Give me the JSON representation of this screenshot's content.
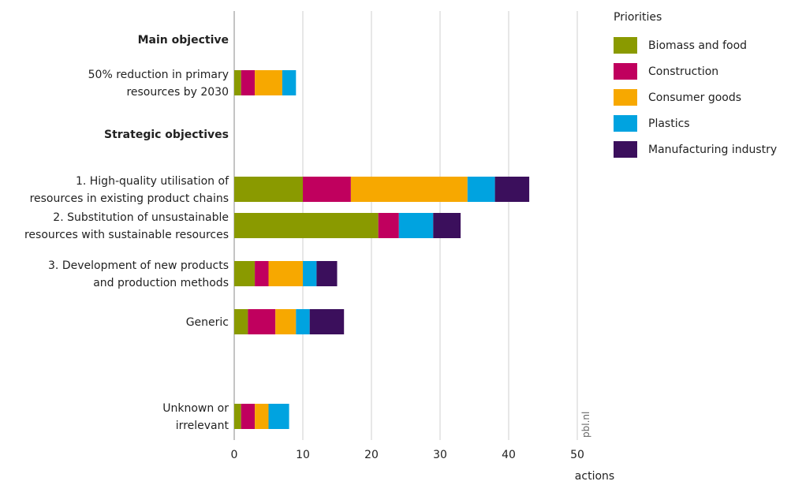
{
  "chart_data": {
    "type": "bar",
    "orientation": "horizontal",
    "stacked": true,
    "headings": [
      "Main objective",
      "Strategic objectives"
    ],
    "categories": [
      [
        "50% reduction in primary",
        "resources by 2030"
      ],
      [
        "1. High-quality utilisation of",
        "resources in existing product chains"
      ],
      [
        "2. Substitution of unsustainable",
        "resources with sustainable resources"
      ],
      [
        "3. Development of new products",
        "and production methods"
      ],
      [
        "Generic"
      ],
      [
        "Unknown or",
        "irrelevant"
      ]
    ],
    "series": [
      {
        "name": "Biomass and food",
        "color": "#8a9a00",
        "values": [
          1,
          10,
          21,
          3,
          2,
          1
        ]
      },
      {
        "name": "Construction",
        "color": "#c0005e",
        "values": [
          2,
          7,
          3,
          2,
          4,
          2
        ]
      },
      {
        "name": "Consumer goods",
        "color": "#f7a800",
        "values": [
          4,
          17,
          0,
          5,
          3,
          2
        ]
      },
      {
        "name": "Plastics",
        "color": "#00a3e0",
        "values": [
          2,
          4,
          5,
          2,
          2,
          3
        ]
      },
      {
        "name": "Manufacturing industry",
        "color": "#3b0f5c",
        "values": [
          0,
          5,
          4,
          3,
          5,
          0
        ]
      }
    ],
    "xlabel": "actions",
    "xlim": [
      0,
      50
    ],
    "xticks": [
      0,
      10,
      20,
      30,
      40,
      50
    ],
    "legend_title": "Priorities",
    "legend_position": "top-right",
    "grid": true,
    "credit": "pbl.nl"
  }
}
